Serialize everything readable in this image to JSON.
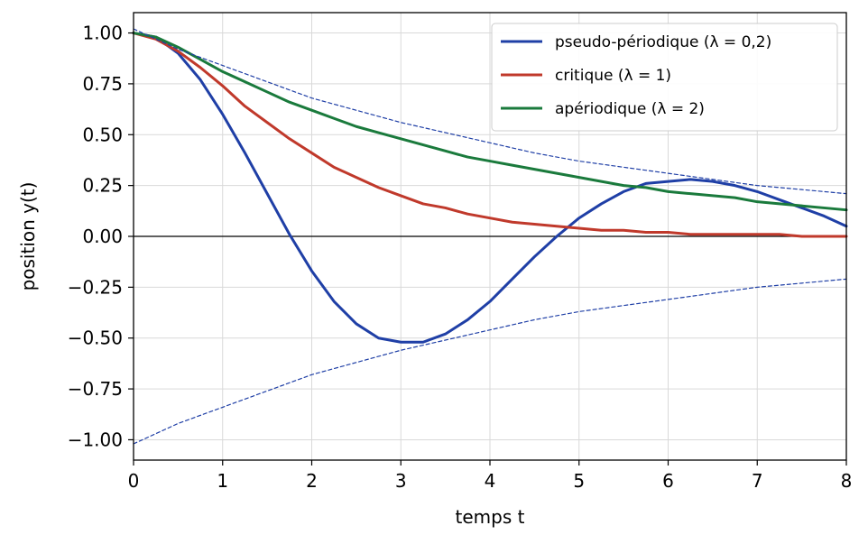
{
  "chart_data": {
    "type": "line",
    "xlabel": "temps t",
    "ylabel": "position y(t)",
    "xlim": [
      0,
      8
    ],
    "ylim": [
      -1.1,
      1.1
    ],
    "xticks": [
      0,
      1,
      2,
      3,
      4,
      5,
      6,
      7,
      8
    ],
    "yticks": [
      -1.0,
      -0.75,
      -0.5,
      -0.25,
      0.0,
      0.25,
      0.5,
      0.75,
      1.0
    ],
    "xtick_labels": [
      "0",
      "1",
      "2",
      "3",
      "4",
      "5",
      "6",
      "7",
      "8"
    ],
    "ytick_labels": [
      "−1.00",
      "−0.75",
      "−0.50",
      "−0.25",
      "0.00",
      "0.25",
      "0.50",
      "0.75",
      "1.00"
    ],
    "grid": true,
    "legend_position": "top-right",
    "series": [
      {
        "name": "pseudo-périodique (λ = 0,2)",
        "color": "#1f3fa6",
        "style": "solid",
        "x": [
          0,
          0.25,
          0.5,
          0.75,
          1,
          1.25,
          1.5,
          1.75,
          2,
          2.25,
          2.5,
          2.75,
          3,
          3.25,
          3.5,
          3.75,
          4,
          4.25,
          4.5,
          4.75,
          5,
          5.25,
          5.5,
          5.75,
          6,
          6.25,
          6.5,
          6.75,
          7,
          7.25,
          7.5,
          7.75,
          8
        ],
        "values": [
          1.0,
          0.98,
          0.9,
          0.77,
          0.6,
          0.41,
          0.21,
          0.01,
          -0.17,
          -0.32,
          -0.43,
          -0.5,
          -0.52,
          -0.52,
          -0.48,
          -0.41,
          -0.32,
          -0.21,
          -0.1,
          0.0,
          0.09,
          0.16,
          0.22,
          0.26,
          0.27,
          0.28,
          0.27,
          0.25,
          0.22,
          0.18,
          0.14,
          0.1,
          0.05
        ]
      },
      {
        "name": "critique (λ = 1)",
        "color": "#c0392b",
        "style": "solid",
        "x": [
          0,
          0.25,
          0.5,
          0.75,
          1,
          1.25,
          1.5,
          1.75,
          2,
          2.25,
          2.5,
          2.75,
          3,
          3.25,
          3.5,
          3.75,
          4,
          4.25,
          4.5,
          4.75,
          5,
          5.25,
          5.5,
          5.75,
          6,
          6.25,
          6.5,
          6.75,
          7,
          7.25,
          7.5,
          7.75,
          8
        ],
        "values": [
          1.0,
          0.97,
          0.91,
          0.83,
          0.74,
          0.64,
          0.56,
          0.48,
          0.41,
          0.34,
          0.29,
          0.24,
          0.2,
          0.16,
          0.14,
          0.11,
          0.09,
          0.07,
          0.06,
          0.05,
          0.04,
          0.03,
          0.03,
          0.02,
          0.02,
          0.01,
          0.01,
          0.01,
          0.01,
          0.01,
          0.0,
          0.0,
          0.0
        ]
      },
      {
        "name": "apériodique (λ = 2)",
        "color": "#1a7a3c",
        "style": "solid",
        "x": [
          0,
          0.25,
          0.5,
          0.75,
          1,
          1.25,
          1.5,
          1.75,
          2,
          2.25,
          2.5,
          2.75,
          3,
          3.25,
          3.5,
          3.75,
          4,
          4.25,
          4.5,
          4.75,
          5,
          5.25,
          5.5,
          5.75,
          6,
          6.25,
          6.5,
          6.75,
          7,
          7.25,
          7.5,
          7.75,
          8
        ],
        "values": [
          1.0,
          0.98,
          0.93,
          0.87,
          0.81,
          0.76,
          0.71,
          0.66,
          0.62,
          0.58,
          0.54,
          0.51,
          0.48,
          0.45,
          0.42,
          0.39,
          0.37,
          0.35,
          0.33,
          0.31,
          0.29,
          0.27,
          0.25,
          0.24,
          0.22,
          0.21,
          0.2,
          0.19,
          0.17,
          0.16,
          0.15,
          0.14,
          0.13
        ]
      },
      {
        "color": "#1f3fa6",
        "style": "dashed",
        "x": [
          0,
          0.5,
          1,
          1.5,
          2,
          2.5,
          3,
          3.5,
          4,
          4.5,
          5,
          5.5,
          6,
          6.5,
          7,
          7.5,
          8
        ],
        "values": [
          1.02,
          0.92,
          0.84,
          0.76,
          0.68,
          0.62,
          0.56,
          0.51,
          0.46,
          0.41,
          0.37,
          0.34,
          0.31,
          0.28,
          0.25,
          0.23,
          0.21
        ]
      },
      {
        "color": "#1f3fa6",
        "style": "dashed",
        "x": [
          0,
          0.5,
          1,
          1.5,
          2,
          2.5,
          3,
          3.5,
          4,
          4.5,
          5,
          5.5,
          6,
          6.5,
          7,
          7.5,
          8
        ],
        "values": [
          -1.02,
          -0.92,
          -0.84,
          -0.76,
          -0.68,
          -0.62,
          -0.56,
          -0.51,
          -0.46,
          -0.41,
          -0.37,
          -0.34,
          -0.31,
          -0.28,
          -0.25,
          -0.23,
          -0.21
        ]
      }
    ]
  }
}
